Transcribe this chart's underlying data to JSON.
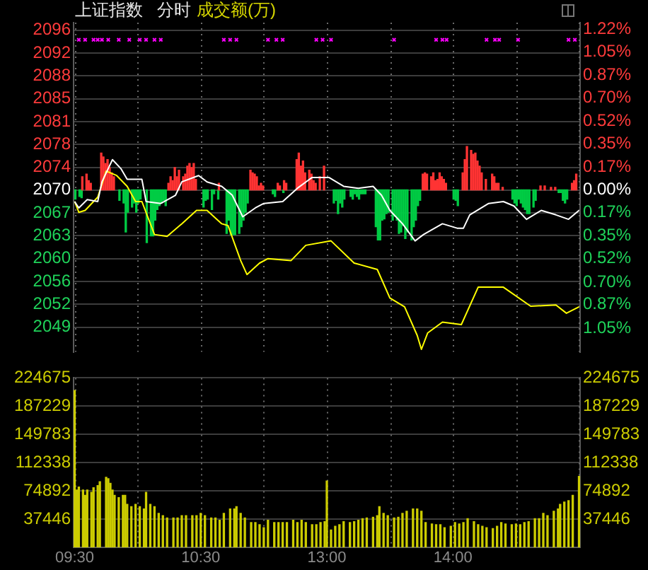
{
  "chart_data": [
    {
      "type": "line",
      "title": "上证指数",
      "subtitle": "分时",
      "annotations": [
        "成交额(万)"
      ],
      "categories": [
        null,
        null,
        null,
        null,
        null,
        null,
        null,
        null,
        null,
        null,
        null,
        null,
        null,
        null,
        null,
        null,
        null,
        null,
        null,
        null,
        null,
        null,
        null,
        null,
        null,
        null,
        null,
        null,
        null,
        null,
        null,
        null,
        null,
        null,
        null,
        null,
        null,
        null,
        null,
        null,
        null,
        null,
        null,
        null,
        null,
        null,
        null,
        null,
        null,
        null,
        null,
        null,
        null,
        null,
        null,
        null,
        null,
        null,
        null,
        null,
        null,
        null,
        null,
        null,
        null,
        null,
        null,
        null,
        null,
        null,
        null,
        null,
        null,
        null,
        null,
        null,
        null,
        null,
        null,
        null,
        null,
        null,
        null,
        null,
        null,
        null,
        null,
        null,
        null,
        null,
        null,
        null,
        null,
        null,
        null,
        null,
        null,
        null,
        null,
        null,
        null,
        null,
        null,
        null,
        null,
        null,
        null,
        null,
        null,
        null,
        null,
        null,
        null,
        null,
        null,
        null,
        null,
        null,
        null,
        null,
        null,
        null,
        null,
        null,
        null,
        null,
        null,
        null,
        null,
        null,
        null,
        null,
        null,
        null,
        null,
        null,
        null,
        null,
        null,
        null,
        null,
        null,
        null,
        null,
        null,
        null,
        null,
        null,
        null,
        null,
        null,
        null,
        null,
        null,
        null,
        null,
        null,
        null,
        null,
        null,
        null,
        null,
        null,
        null,
        null,
        null,
        null,
        null,
        null,
        null,
        null,
        null,
        null,
        null,
        null,
        null,
        null,
        null,
        null,
        null,
        null,
        null,
        null,
        null,
        null,
        null,
        null,
        null,
        null,
        null,
        null,
        null,
        null,
        null,
        null,
        null,
        null,
        null,
        null,
        null,
        null,
        null,
        null,
        null,
        null,
        null,
        null,
        null,
        null,
        null,
        null,
        null,
        null,
        null,
        null,
        null,
        null,
        null,
        null,
        null,
        null,
        null,
        null,
        null,
        null,
        null,
        null,
        null,
        null,
        null,
        null,
        null,
        null,
        null,
        null,
        null,
        null,
        null,
        null,
        null,
        null
      ],
      "ylim": [
        2044.9,
        2096.8
      ],
      "yticks": [
        {
          "value": 2095.6,
          "label": "2096"
        },
        {
          "value": 2092.0,
          "label": "2092"
        },
        {
          "value": 2088.4,
          "label": "2088"
        },
        {
          "value": 2084.8,
          "label": "2085"
        },
        {
          "value": 2081.2,
          "label": "2081"
        },
        {
          "value": 2077.6,
          "label": "2078"
        },
        {
          "value": 2074.0,
          "label": "2074"
        },
        {
          "value": 2070.4,
          "label": "2070"
        },
        {
          "value": 2066.8,
          "label": "2067"
        },
        {
          "value": 2063.2,
          "label": "2063"
        },
        {
          "value": 2059.6,
          "label": "2060"
        },
        {
          "value": 2056.0,
          "label": "2056"
        },
        {
          "value": 2052.4,
          "label": "2052"
        },
        {
          "value": 2048.8,
          "label": "2049"
        }
      ],
      "y2lim": [
        -1.23,
        1.27
      ],
      "y2ticks": [
        {
          "value": 1.22,
          "label": "1.22%"
        },
        {
          "value": 1.05,
          "label": "1.05%"
        },
        {
          "value": 0.87,
          "label": "0.87%"
        },
        {
          "value": 0.7,
          "label": "0.70%"
        },
        {
          "value": 0.52,
          "label": "0.52%"
        },
        {
          "value": 0.35,
          "label": "0.35%"
        },
        {
          "value": 0.17,
          "label": "0.17%"
        },
        {
          "value": 0,
          "label": "0.00%"
        },
        {
          "value": -0.17,
          "label": "0.17%"
        },
        {
          "value": -0.35,
          "label": "0.35%"
        },
        {
          "value": -0.52,
          "label": "0.52%"
        },
        {
          "value": -0.7,
          "label": "0.70%"
        },
        {
          "value": -0.87,
          "label": "0.87%"
        },
        {
          "value": -1.05,
          "label": "1.05%"
        }
      ],
      "grid": true,
      "marker": "none",
      "series": [
        {
          "type": "bar",
          "axis": "y2",
          "color": "#ff3333",
          "values": [
            null,
            null,
            null,
            null,
            0.1,
            null,
            0.12,
            0.07,
            0.05,
            null,
            null,
            null,
            null,
            0.28,
            0.25,
            0.2,
            0.23,
            0.17,
            0.13,
            0.1,
            null,
            null,
            null,
            null,
            null,
            null,
            null,
            null,
            null,
            null,
            null,
            null,
            null,
            null,
            null,
            null,
            null,
            null,
            null,
            null,
            null,
            null,
            null,
            null,
            null,
            0.05,
            0.1,
            0.07,
            0.17,
            0.1,
            0.15,
            null,
            0.1,
            0.12,
            0.18,
            0.2,
            0.17,
            0.2,
            0.08,
            null,
            null,
            null,
            null,
            null,
            null,
            null,
            null,
            null,
            null,
            0.05,
            null,
            null,
            null,
            null,
            null,
            null,
            null,
            null,
            null,
            null,
            null,
            null,
            null,
            null,
            0.15,
            0.13,
            0.12,
            0.1,
            0.03,
            0.05,
            0.03,
            null,
            null,
            null,
            null,
            null,
            null,
            0.05,
            0.03,
            null,
            0.07,
            0.05,
            null,
            null,
            null,
            null,
            0.23,
            0.28,
            0.18,
            0.22,
            0.13,
            null,
            0.15,
            0.12,
            0.07,
            0.05,
            null,
            0.1,
            null,
            0.18,
            null,
            null,
            null,
            null,
            null,
            null,
            null,
            null,
            null,
            null,
            null,
            null,
            null,
            null,
            null,
            null,
            null,
            null,
            null,
            null,
            null,
            null,
            null,
            null,
            null,
            null,
            null,
            null,
            null,
            null,
            null,
            null,
            null,
            null,
            null,
            null,
            null,
            null,
            null,
            null,
            null,
            null,
            null,
            null,
            null,
            null,
            0.12,
            0.13,
            0.12,
            null,
            0.1,
            0.13,
            0.07,
            0.08,
            0.13,
            0.1,
            0.08,
            0.05,
            null,
            null,
            null,
            null,
            null,
            null,
            null,
            0.13,
            0.23,
            0.33,
            null,
            0.3,
            0.27,
            0.28,
            0.22,
            0.18,
            0.13,
            null,
            0.08,
            null,
            null,
            0.12,
            0.1,
            0.05,
            0.05,
            null,
            0.02,
            null,
            null,
            null,
            null,
            null,
            null,
            null,
            null,
            null,
            null,
            null,
            null,
            null,
            null,
            null,
            null,
            null,
            0.03,
            null,
            0.03,
            null,
            null,
            0.02,
            null,
            0.02,
            null,
            null,
            null,
            null,
            null,
            null,
            null,
            0.05,
            0.07,
            0.12,
            null
          ]
        },
        {
          "type": "bar",
          "axis": "y2",
          "color": "#00cc44",
          "values": [
            -0.07,
            null,
            -0.05,
            -0.06,
            null,
            null,
            null,
            null,
            null,
            null,
            null,
            null,
            null,
            null,
            null,
            null,
            null,
            null,
            null,
            null,
            null,
            -0.08,
            null,
            -0.1,
            -0.32,
            -0.17,
            null,
            -0.13,
            -0.1,
            -0.17,
            -0.1,
            -0.07,
            null,
            null,
            -0.4,
            null,
            -0.35,
            -0.35,
            -0.23,
            -0.15,
            -0.12,
            -0.1,
            -0.08,
            -0.12,
            null,
            null,
            null,
            null,
            null,
            null,
            null,
            null,
            null,
            null,
            null,
            null,
            null,
            null,
            null,
            null,
            null,
            -0.13,
            -0.08,
            -0.07,
            null,
            -0.15,
            -0.03,
            null,
            -0.07,
            null,
            null,
            null,
            -0.33,
            -0.23,
            -0.34,
            -0.34,
            -0.34,
            null,
            -0.33,
            -0.28,
            -0.23,
            -0.17,
            -0.1,
            null,
            null,
            null,
            null,
            null,
            null,
            null,
            null,
            null,
            null,
            null,
            -0.03,
            -0.05,
            null,
            null,
            null,
            -0.02,
            null,
            null,
            null,
            null,
            null,
            null,
            null,
            null,
            null,
            null,
            null,
            null,
            null,
            null,
            null,
            null,
            null,
            null,
            null,
            null,
            null,
            null,
            null,
            -0.1,
            -0.08,
            -0.18,
            -0.1,
            -0.13,
            -0.07,
            null,
            null,
            -0.05,
            -0.07,
            -0.03,
            -0.05,
            -0.07,
            -0.03,
            -0.03,
            -0.03,
            null,
            null,
            null,
            null,
            -0.28,
            -0.38,
            -0.38,
            -0.23,
            -0.22,
            -0.18,
            -0.17,
            null,
            -0.23,
            -0.2,
            -0.23,
            -0.33,
            -0.32,
            -0.27,
            -0.37,
            -0.32,
            null,
            -0.38,
            -0.28,
            -0.23,
            -0.12,
            -0.08,
            null,
            null,
            null,
            null,
            null,
            null,
            null,
            null,
            null,
            null,
            null,
            null,
            null,
            null,
            null,
            -0.07,
            -0.08,
            -0.12,
            null,
            null,
            null,
            null,
            null,
            null,
            null,
            null,
            null,
            null,
            null,
            null,
            null,
            null,
            null,
            null,
            null,
            null,
            null,
            null,
            null,
            null,
            null,
            null,
            null,
            -0.07,
            -0.1,
            -0.12,
            -0.07,
            -0.1,
            -0.13,
            -0.15,
            -0.18,
            -0.18,
            null,
            -0.13,
            -0.08,
            null,
            null,
            null,
            null,
            null,
            null,
            null,
            null,
            null,
            null,
            -0.02,
            -0.02,
            -0.08,
            -0.1,
            -0.07,
            null,
            null,
            null,
            null,
            null,
            null
          ]
        },
        {
          "type": "line",
          "color": "#ffffff",
          "values": [
            2068.6,
            null,
            2067.6,
            null,
            null,
            null,
            2068.9,
            null,
            null,
            null,
            null,
            2068.6,
            null,
            2071.7,
            null,
            null,
            null,
            null,
            2075.2,
            null,
            null,
            null,
            2073.8,
            null,
            null,
            2072.1,
            null,
            null,
            null,
            null,
            null,
            null,
            2072.1,
            null,
            2068.6,
            null,
            null,
            null,
            null,
            null,
            null,
            2068.3,
            null,
            null,
            null,
            null,
            null,
            null,
            2069.6,
            null,
            null,
            2071.7,
            null,
            null,
            null,
            null,
            null,
            null,
            null,
            2072.7,
            null,
            null,
            null,
            2071.7,
            null,
            null,
            null,
            null,
            null,
            null,
            2071.0,
            null,
            null,
            null,
            null,
            2069.6,
            null,
            null,
            null,
            null,
            2066.2,
            null,
            null,
            null,
            null,
            null,
            2067.6,
            null,
            null,
            null,
            2068.3,
            null,
            null,
            null,
            null,
            null,
            null,
            null,
            null,
            2068.6,
            null,
            null,
            null,
            null,
            null,
            null,
            2070.7,
            null,
            null,
            null,
            null,
            null,
            null,
            2072.4,
            null,
            null,
            null,
            null,
            null,
            null,
            null,
            2072.4,
            null,
            null,
            null,
            null,
            null,
            null,
            2071.0,
            null,
            null,
            null,
            null,
            null,
            null,
            2070.7,
            null,
            null,
            null,
            null,
            null,
            null,
            2071.0,
            null,
            null,
            null,
            2069.6,
            null,
            null,
            null,
            2067.2,
            null,
            null,
            null,
            null,
            null,
            2065.1,
            null,
            null,
            null,
            null,
            null,
            2062.4,
            null,
            null,
            null,
            2063.4,
            null,
            null,
            null,
            null,
            null,
            null,
            null,
            null,
            2065.1,
            null,
            null,
            null,
            null,
            null,
            null,
            2064.4,
            null,
            null,
            2064.4,
            null,
            null,
            2066.5,
            null,
            null,
            null,
            null,
            null,
            null,
            null,
            null,
            2068.3,
            null,
            null,
            null,
            null,
            null,
            null,
            2068.6,
            null,
            null,
            null,
            null,
            2067.9,
            null,
            null,
            null,
            null,
            null,
            2065.8,
            null,
            null,
            null,
            null,
            null,
            null,
            2067.2,
            null,
            null,
            null,
            null,
            null,
            null,
            2066.5,
            null,
            null,
            null,
            null,
            null,
            2065.8,
            null,
            null,
            null,
            null,
            2067.2
          ]
        },
        {
          "type": "line",
          "color": "#ffff00",
          "values": [
            2068.6,
            null,
            2066.9,
            null,
            null,
            2067.2,
            null,
            null,
            null,
            null,
            null,
            2069.3,
            null,
            null,
            null,
            2073.4,
            null,
            null,
            null,
            null,
            2072.7,
            null,
            null,
            null,
            null,
            2071.0,
            null,
            null,
            null,
            2068.6,
            null,
            null,
            2068.6,
            null,
            null,
            null,
            null,
            null,
            2063.4,
            null,
            null,
            null,
            null,
            null,
            2063.1,
            null,
            null,
            null,
            null,
            null,
            null,
            2065.1,
            null,
            null,
            null,
            null,
            null,
            null,
            2067.2,
            null,
            null,
            null,
            null,
            2067.2,
            null,
            null,
            null,
            null,
            null,
            null,
            2065.1,
            null,
            null,
            2064.8,
            null,
            null,
            null,
            null,
            null,
            2059.3,
            null,
            null,
            2057.1,
            null,
            null,
            null,
            null,
            null,
            2058.9,
            null,
            null,
            null,
            2059.6,
            null,
            null,
            null,
            null,
            null,
            null,
            null,
            null,
            null,
            null,
            2059.3,
            null,
            null,
            null,
            null,
            null,
            null,
            2061.7,
            null,
            null,
            null,
            null,
            null,
            null,
            null,
            null,
            null,
            null,
            null,
            2062.4,
            null,
            null,
            null,
            null,
            null,
            null,
            null,
            null,
            null,
            null,
            2058.9,
            null,
            null,
            null,
            null,
            null,
            null,
            null,
            null,
            null,
            null,
            2057.9,
            null,
            null,
            null,
            null,
            null,
            2053.4,
            null,
            null,
            null,
            null,
            null,
            null,
            2052.0,
            null,
            null,
            null,
            null,
            null,
            2047.5,
            null,
            2045.3,
            null,
            null,
            2047.9,
            null,
            null,
            null,
            null,
            null,
            null,
            2049.6,
            null,
            null,
            null,
            null,
            null,
            null,
            null,
            null,
            2049.2,
            null,
            null,
            null,
            null,
            null,
            null,
            null,
            2055.1,
            null,
            null,
            null,
            null,
            null,
            null,
            null,
            null,
            null,
            null,
            null,
            2055.1,
            null,
            null,
            null,
            null,
            null,
            null,
            null,
            null,
            null,
            null,
            null,
            null,
            2052.1,
            null,
            null,
            null,
            null,
            null,
            null,
            null,
            null,
            null,
            null,
            null,
            2052.3,
            null,
            null,
            null,
            null,
            2051.0,
            null,
            null,
            null,
            null,
            null,
            2052.0
          ]
        },
        {
          "type": "scatter",
          "marker": "cross",
          "color": "#ff00ff",
          "values": [
            null,
            null,
            2094.1,
            null,
            null,
            2094.1,
            null,
            null,
            null,
            2094.1,
            null,
            2094.1,
            null,
            2094.1,
            null,
            null,
            2094.1,
            null,
            null,
            null,
            null,
            2094.1,
            null,
            null,
            null,
            null,
            2094.1,
            null,
            null,
            null,
            null,
            2094.1,
            null,
            null,
            2094.1,
            null,
            null,
            null,
            2094.1,
            null,
            null,
            2094.1,
            null,
            null,
            null,
            null,
            null,
            null,
            null,
            null,
            null,
            null,
            null,
            null,
            null,
            null,
            null,
            null,
            null,
            null,
            null,
            null,
            null,
            null,
            null,
            null,
            null,
            null,
            null,
            null,
            null,
            2094.1,
            null,
            null,
            2094.1,
            null,
            null,
            2094.1,
            null,
            null,
            null,
            null,
            null,
            null,
            null,
            null,
            null,
            null,
            null,
            null,
            null,
            null,
            2094.1,
            null,
            null,
            null,
            2094.1,
            null,
            null,
            2094.1,
            null,
            null,
            null,
            null,
            null,
            null,
            null,
            null,
            null,
            null,
            null,
            null,
            null,
            null,
            null,
            2094.1,
            null,
            null,
            2094.1,
            null,
            null,
            null,
            2094.1,
            null,
            null,
            null,
            null,
            null,
            null,
            null,
            null,
            null,
            null,
            null,
            null,
            null,
            null,
            null,
            null,
            null,
            null,
            null,
            null,
            null,
            null,
            null,
            null,
            null,
            null,
            null,
            null,
            null,
            2094.1,
            null,
            null,
            null,
            null,
            null,
            null,
            null,
            null,
            null,
            null,
            null,
            null,
            null,
            null,
            null,
            null,
            null,
            null,
            null,
            2094.1,
            null,
            null,
            2094.1,
            null,
            2094.1,
            null,
            null,
            null,
            null,
            null,
            null,
            null,
            null,
            null,
            null,
            null,
            null,
            null,
            null,
            null,
            null,
            null,
            null,
            2094.1,
            null,
            null,
            null,
            2094.1,
            null,
            2094.1,
            null,
            null,
            null,
            null,
            null,
            null,
            null,
            null,
            2094.1,
            null,
            null,
            null,
            null,
            null,
            null,
            null,
            null,
            null,
            null,
            null,
            null,
            null,
            null,
            null,
            null,
            null,
            null,
            null,
            null,
            null,
            null,
            null,
            2094.1,
            null,
            null,
            2094.1,
            null,
            null
          ]
        }
      ]
    },
    {
      "type": "bar",
      "categories": [
        "09:30",
        null,
        null,
        null,
        null,
        null,
        null,
        null,
        null,
        null,
        null,
        null,
        null,
        null,
        null,
        null,
        null,
        null,
        null,
        null,
        null,
        null,
        null,
        null,
        null,
        null,
        null,
        null,
        null,
        null,
        null,
        null,
        null,
        null,
        null,
        null,
        null,
        null,
        null,
        null,
        null,
        null,
        null,
        null,
        null,
        null,
        null,
        null,
        null,
        null,
        null,
        null,
        null,
        null,
        null,
        null,
        null,
        null,
        null,
        null,
        "10:30",
        null,
        null,
        null,
        null,
        null,
        null,
        null,
        null,
        null,
        null,
        null,
        null,
        null,
        null,
        null,
        null,
        null,
        null,
        null,
        null,
        null,
        null,
        null,
        null,
        null,
        null,
        null,
        null,
        null,
        null,
        null,
        null,
        null,
        null,
        null,
        null,
        null,
        null,
        null,
        null,
        null,
        null,
        null,
        null,
        null,
        null,
        null,
        null,
        null,
        null,
        null,
        null,
        null,
        null,
        null,
        null,
        null,
        null,
        null,
        "13:00",
        null,
        null,
        null,
        null,
        null,
        null,
        null,
        null,
        null,
        null,
        null,
        null,
        null,
        null,
        null,
        null,
        null,
        null,
        null,
        null,
        null,
        null,
        null,
        null,
        null,
        null,
        null,
        null,
        null,
        null,
        null,
        null,
        null,
        null,
        null,
        null,
        null,
        null,
        null,
        null,
        null,
        null,
        null,
        null,
        null,
        null,
        null,
        null,
        null,
        null,
        null,
        null,
        null,
        null,
        null,
        null,
        null,
        null,
        null,
        "14:00",
        null,
        null,
        null,
        null,
        null,
        null,
        null,
        null,
        null,
        null,
        null,
        null,
        null,
        null,
        null,
        null,
        null,
        null,
        null,
        null,
        null,
        null,
        null,
        null,
        null,
        null,
        null,
        null,
        null,
        null,
        null,
        null,
        null,
        null,
        null,
        null,
        null,
        null,
        null,
        null,
        null,
        null,
        null,
        null,
        null,
        null,
        null,
        null,
        null,
        null,
        null,
        null,
        null,
        null,
        null,
        null,
        null,
        null,
        null,
        null
      ],
      "ylim": [
        0,
        224675
      ],
      "yticks": [
        37446,
        74892,
        112338,
        149783,
        187229,
        224675
      ],
      "y2lim": [
        0,
        224675
      ],
      "y2ticks": [
        37446,
        74892,
        112338,
        149783,
        187229,
        224675
      ],
      "grid": true,
      "series": [
        {
          "color": "#cccc00",
          "values": [
            208000,
            76000,
            80000,
            null,
            76000,
            69000,
            76000,
            null,
            73000,
            79000,
            null,
            82000,
            87000,
            null,
            null,
            93000,
            91000,
            85000,
            76000,
            69000,
            null,
            66000,
            null,
            69000,
            69000,
            57000,
            null,
            54000,
            null,
            57000,
            null,
            54000,
            null,
            51000,
            73000,
            null,
            57000,
            null,
            54000,
            null,
            45000,
            null,
            42000,
            null,
            39000,
            null,
            null,
            39000,
            null,
            39000,
            null,
            42000,
            null,
            42000,
            null,
            null,
            42000,
            null,
            42000,
            null,
            45000,
            null,
            42000,
            null,
            null,
            39000,
            null,
            39000,
            null,
            36000,
            null,
            45000,
            null,
            null,
            51000,
            null,
            51000,
            54000,
            null,
            45000,
            null,
            39000,
            null,
            null,
            33000,
            null,
            33000,
            null,
            30000,
            null,
            26000,
            null,
            36000,
            null,
            null,
            33000,
            null,
            33000,
            null,
            33000,
            null,
            33000,
            null,
            null,
            36000,
            null,
            33000,
            null,
            36000,
            null,
            33000,
            null,
            null,
            30000,
            null,
            30000,
            null,
            33000,
            null,
            34000,
            88000,
            null,
            23000,
            null,
            28000,
            null,
            30000,
            null,
            34000,
            null,
            null,
            33000,
            null,
            34000,
            null,
            36000,
            null,
            38000,
            null,
            39000,
            null,
            null,
            40000,
            null,
            42000,
            54000,
            null,
            45000,
            null,
            42000,
            null,
            null,
            39000,
            null,
            40000,
            null,
            45000,
            null,
            48000,
            null,
            null,
            51000,
            null,
            51000,
            null,
            48000,
            null,
            33000,
            null,
            null,
            31000,
            null,
            30000,
            null,
            30000,
            null,
            26000,
            null,
            null,
            28000,
            null,
            33000,
            null,
            31000,
            null,
            33000,
            null,
            38000,
            null,
            null,
            34000,
            null,
            30000,
            null,
            28000,
            null,
            26000,
            null,
            null,
            25000,
            null,
            28000,
            null,
            33000,
            null,
            31000,
            null,
            null,
            30000,
            null,
            31000,
            null,
            30000,
            null,
            33000,
            null,
            34000,
            null,
            null,
            38000,
            null,
            38000,
            null,
            45000,
            null,
            42000,
            null,
            null,
            48000,
            null,
            51000,
            57000,
            null,
            60000,
            null,
            62000,
            null,
            69000,
            null,
            null,
            94000
          ]
        }
      ]
    }
  ]
}
